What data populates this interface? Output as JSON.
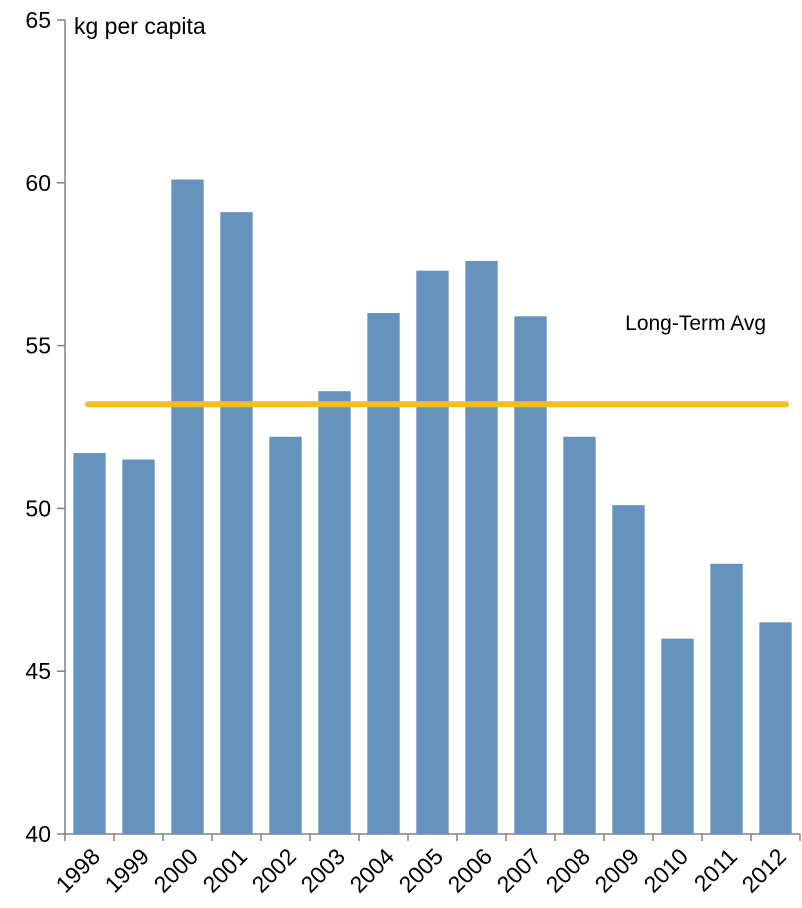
{
  "chart_data": {
    "type": "bar",
    "title": "",
    "ylabel": "kg per capita",
    "xlabel": "",
    "categories": [
      "1998",
      "1999",
      "2000",
      "2001",
      "2002",
      "2003",
      "2004",
      "2005",
      "2006",
      "2007",
      "2008",
      "2009",
      "2010",
      "2011",
      "2012"
    ],
    "values": [
      51.7,
      51.5,
      60.1,
      59.1,
      52.2,
      53.6,
      56.0,
      57.3,
      57.6,
      55.9,
      52.2,
      50.1,
      46.0,
      48.3,
      46.5
    ],
    "ylim": [
      40,
      65
    ],
    "yticks": [
      "40",
      "45",
      "50",
      "55",
      "60",
      "65"
    ],
    "grid": false,
    "legend": "none",
    "reference_line": {
      "label": "Long-Term Avg",
      "value": 53.2,
      "color": "#F5BE1F"
    },
    "bar_color": "#6593BD"
  }
}
